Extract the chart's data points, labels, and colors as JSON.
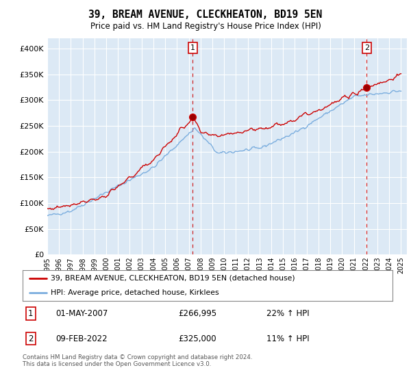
{
  "title": "39, BREAM AVENUE, CLECKHEATON, BD19 5EN",
  "subtitle": "Price paid vs. HM Land Registry's House Price Index (HPI)",
  "red_label": "39, BREAM AVENUE, CLECKHEATON, BD19 5EN (detached house)",
  "blue_label": "HPI: Average price, detached house, Kirklees",
  "footer": "Contains HM Land Registry data © Crown copyright and database right 2024.\nThis data is licensed under the Open Government Licence v3.0.",
  "annotation1": {
    "num": "1",
    "date": "01-MAY-2007",
    "price": "£266,995",
    "pct": "22% ↑ HPI"
  },
  "annotation2": {
    "num": "2",
    "date": "09-FEB-2022",
    "price": "£325,000",
    "pct": "11% ↑ HPI"
  },
  "ylim": [
    0,
    420000
  ],
  "yticks": [
    0,
    50000,
    100000,
    150000,
    200000,
    250000,
    300000,
    350000,
    400000
  ],
  "bg_color": "#dce9f5",
  "grid_color": "white",
  "red_color": "#cc0000",
  "blue_color": "#7aadde",
  "marker1_x": 2007.33,
  "marker1_y": 266995,
  "marker2_x": 2022.1,
  "marker2_y": 325000,
  "xmin": 1995,
  "xmax": 2025.5
}
